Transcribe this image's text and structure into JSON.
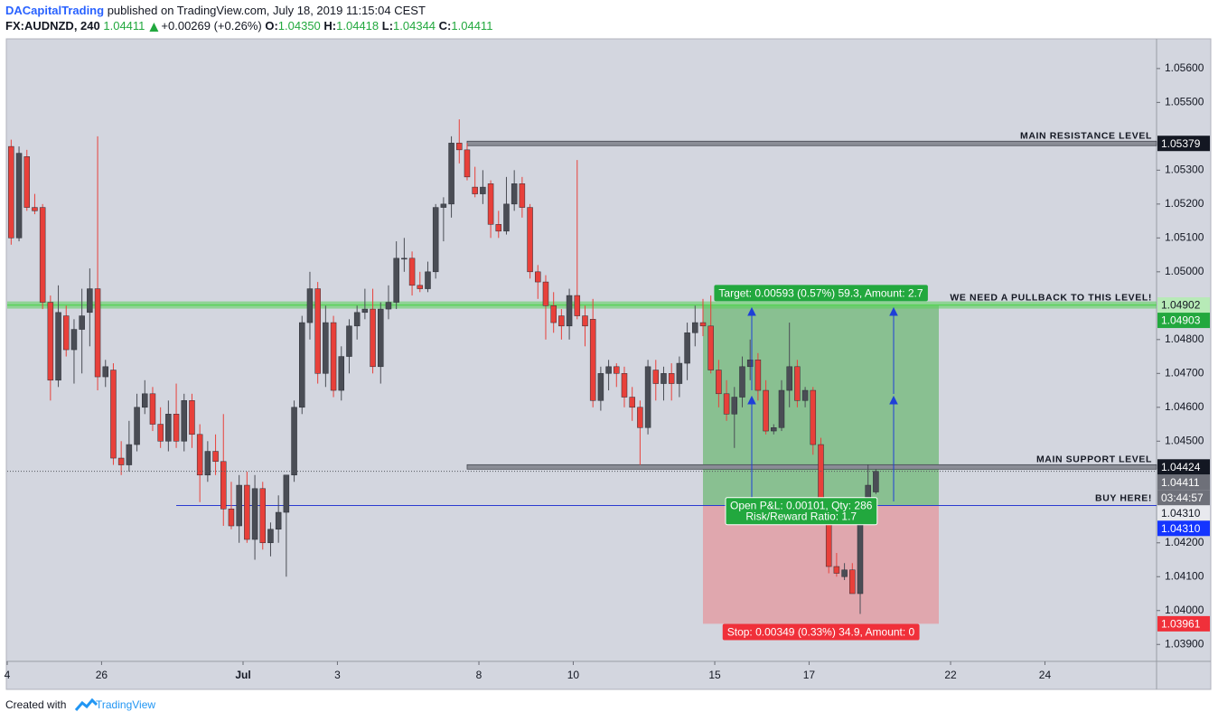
{
  "header": {
    "author": "DACapitalTrading",
    "published": "published on TradingView.com, July 18, 2019 11:15:04 CEST",
    "symbol": "FX:AUDNZD, 240",
    "last": "1.04411",
    "change": "+0.00269 (+0.26%)",
    "ohlc": [
      {
        "label": "O:",
        "value": "1.04350"
      },
      {
        "label": "H:",
        "value": "1.04418"
      },
      {
        "label": "L:",
        "value": "1.04344"
      },
      {
        "label": "C:",
        "value": "1.04411"
      }
    ]
  },
  "footer": {
    "created": "Created with",
    "brand": "TradingView"
  },
  "chart_data": {
    "type": "candlestick",
    "up_color": "#4a4d55",
    "down_color": "#e8403a",
    "grid": false,
    "xlim": [
      -0.5,
      145.7
    ],
    "ylim": [
      1.0385,
      1.05685
    ],
    "xticks": [
      {
        "value": -0.5,
        "label": "4"
      },
      {
        "value": 11.5,
        "label": "26"
      },
      {
        "value": 29.5,
        "label": "Jul"
      },
      {
        "value": 41.5,
        "label": "3"
      },
      {
        "value": 59.5,
        "label": "8"
      },
      {
        "value": 71.5,
        "label": "10"
      },
      {
        "value": 89.5,
        "label": "15"
      },
      {
        "value": 101.5,
        "label": "17"
      },
      {
        "value": 119.5,
        "label": "22"
      },
      {
        "value": 131.5,
        "label": "24"
      }
    ],
    "yticks": [
      {
        "value": 1.056,
        "label": "1.05600"
      },
      {
        "value": 1.055,
        "label": "1.05500"
      },
      {
        "value": 1.053,
        "label": "1.05300"
      },
      {
        "value": 1.052,
        "label": "1.05200"
      },
      {
        "value": 1.051,
        "label": "1.05100"
      },
      {
        "value": 1.05,
        "label": "1.05000"
      },
      {
        "value": 1.048,
        "label": "1.04800"
      },
      {
        "value": 1.047,
        "label": "1.04700"
      },
      {
        "value": 1.046,
        "label": "1.04600"
      },
      {
        "value": 1.045,
        "label": "1.04500"
      },
      {
        "value": 1.042,
        "label": "1.04200"
      },
      {
        "value": 1.041,
        "label": "1.04100"
      },
      {
        "value": 1.04,
        "label": "1.04000"
      },
      {
        "value": 1.039,
        "label": "1.03900"
      }
    ],
    "candles": [
      [
        1.0537,
        1.0539,
        1.0508,
        1.051
      ],
      [
        1.051,
        1.0537,
        1.0509,
        1.0535
      ],
      [
        1.0534,
        1.0536,
        1.0518,
        1.0519
      ],
      [
        1.0519,
        1.0523,
        1.0517,
        1.0518
      ],
      [
        1.0519,
        1.052,
        1.0489,
        1.0491
      ],
      [
        1.0491,
        1.0493,
        1.0462,
        1.0468
      ],
      [
        1.0468,
        1.0496,
        1.0466,
        1.0488
      ],
      [
        1.0487,
        1.049,
        1.0475,
        1.0477
      ],
      [
        1.0477,
        1.0486,
        1.0467,
        1.0483
      ],
      [
        1.0483,
        1.0495,
        1.047,
        1.0487
      ],
      [
        1.0488,
        1.0501,
        1.0478,
        1.0495
      ],
      [
        1.0495,
        1.054,
        1.0465,
        1.0469
      ],
      [
        1.0469,
        1.0474,
        1.0466,
        1.0472
      ],
      [
        1.0471,
        1.0473,
        1.0443,
        1.0445
      ],
      [
        1.0445,
        1.045,
        1.044,
        1.0443
      ],
      [
        1.0443,
        1.0456,
        1.0441,
        1.0449
      ],
      [
        1.0449,
        1.0464,
        1.0447,
        1.046
      ],
      [
        1.046,
        1.0468,
        1.0458,
        1.0464
      ],
      [
        1.0464,
        1.0466,
        1.0453,
        1.0455
      ],
      [
        1.0455,
        1.046,
        1.0448,
        1.045
      ],
      [
        1.045,
        1.0462,
        1.0447,
        1.0458
      ],
      [
        1.0458,
        1.0467,
        1.0448,
        1.045
      ],
      [
        1.045,
        1.0464,
        1.0447,
        1.0462
      ],
      [
        1.0462,
        1.0464,
        1.0448,
        1.0452
      ],
      [
        1.0452,
        1.0455,
        1.0432,
        1.044
      ],
      [
        1.044,
        1.045,
        1.0438,
        1.0447
      ],
      [
        1.0447,
        1.0452,
        1.044,
        1.0444
      ],
      [
        1.0444,
        1.0458,
        1.0425,
        1.043
      ],
      [
        1.043,
        1.0438,
        1.0424,
        1.0425
      ],
      [
        1.0425,
        1.044,
        1.042,
        1.0437
      ],
      [
        1.0437,
        1.0441,
        1.042,
        1.0421
      ],
      [
        1.0421,
        1.044,
        1.0415,
        1.0436
      ],
      [
        1.0436,
        1.0438,
        1.0418,
        1.042
      ],
      [
        1.042,
        1.0426,
        1.0416,
        1.0424
      ],
      [
        1.0424,
        1.0434,
        1.042,
        1.0429
      ],
      [
        1.0429,
        1.044,
        1.041,
        1.044
      ],
      [
        1.044,
        1.0462,
        1.0438,
        1.046
      ],
      [
        1.046,
        1.0487,
        1.0458,
        1.0485
      ],
      [
        1.0485,
        1.05,
        1.048,
        1.0495
      ],
      [
        1.0495,
        1.0497,
        1.0467,
        1.047
      ],
      [
        1.047,
        1.049,
        1.0466,
        1.0485
      ],
      [
        1.0485,
        1.0487,
        1.0463,
        1.0465
      ],
      [
        1.0465,
        1.0478,
        1.0462,
        1.0475
      ],
      [
        1.0475,
        1.0486,
        1.047,
        1.0484
      ],
      [
        1.0484,
        1.049,
        1.048,
        1.0488
      ],
      [
        1.0488,
        1.0495,
        1.0486,
        1.0489
      ],
      [
        1.0489,
        1.0495,
        1.047,
        1.0472
      ],
      [
        1.0472,
        1.0491,
        1.0467,
        1.0489
      ],
      [
        1.0489,
        1.0496,
        1.0486,
        1.0491
      ],
      [
        1.0491,
        1.0509,
        1.0489,
        1.0504
      ],
      [
        1.0504,
        1.051,
        1.05,
        1.0504
      ],
      [
        1.0504,
        1.0506,
        1.0493,
        1.0496
      ],
      [
        1.0496,
        1.05,
        1.0494,
        1.0495
      ],
      [
        1.0495,
        1.0503,
        1.0494,
        1.05
      ],
      [
        1.05,
        1.052,
        1.0498,
        1.0519
      ],
      [
        1.0519,
        1.0522,
        1.0509,
        1.052
      ],
      [
        1.052,
        1.054,
        1.0516,
        1.0538
      ],
      [
        1.0538,
        1.0545,
        1.0532,
        1.0536
      ],
      [
        1.0536,
        1.0538,
        1.0527,
        1.0528
      ],
      [
        1.0525,
        1.0531,
        1.0522,
        1.0523
      ],
      [
        1.0523,
        1.053,
        1.052,
        1.0525
      ],
      [
        1.0526,
        1.0527,
        1.051,
        1.0514
      ],
      [
        1.0514,
        1.0518,
        1.051,
        1.0512
      ],
      [
        1.0512,
        1.0528,
        1.0511,
        1.052
      ],
      [
        1.052,
        1.053,
        1.0518,
        1.0526
      ],
      [
        1.0526,
        1.0528,
        1.0516,
        1.0519
      ],
      [
        1.0519,
        1.052,
        1.0498,
        1.05
      ],
      [
        1.05,
        1.0502,
        1.0492,
        1.0497
      ],
      [
        1.0497,
        1.0499,
        1.048,
        1.049
      ],
      [
        1.049,
        1.0494,
        1.0482,
        1.0485
      ],
      [
        1.0487,
        1.0489,
        1.048,
        1.0484
      ],
      [
        1.0484,
        1.0495,
        1.048,
        1.0493
      ],
      [
        1.0493,
        1.0533,
        1.0486,
        1.0487
      ],
      [
        1.0487,
        1.049,
        1.0478,
        1.0484
      ],
      [
        1.0486,
        1.0492,
        1.046,
        1.0462
      ],
      [
        1.0462,
        1.0472,
        1.0459,
        1.047
      ],
      [
        1.047,
        1.0474,
        1.0465,
        1.0472
      ],
      [
        1.0472,
        1.0473,
        1.0466,
        1.047
      ],
      [
        1.047,
        1.0472,
        1.046,
        1.0463
      ],
      [
        1.0463,
        1.0466,
        1.0456,
        1.046
      ],
      [
        1.046,
        1.0462,
        1.0443,
        1.0454
      ],
      [
        1.0454,
        1.0474,
        1.0452,
        1.0472
      ],
      [
        1.0471,
        1.0474,
        1.0462,
        1.0467
      ],
      [
        1.0467,
        1.0472,
        1.0462,
        1.047
      ],
      [
        1.047,
        1.0473,
        1.0462,
        1.0467
      ],
      [
        1.0467,
        1.0475,
        1.0463,
        1.0473
      ],
      [
        1.0473,
        1.0485,
        1.0468,
        1.0482
      ],
      [
        1.0482,
        1.049,
        1.0478,
        1.0485
      ],
      [
        1.0485,
        1.0492,
        1.0481,
        1.0484
      ],
      [
        1.0484,
        1.0493,
        1.047,
        1.0471
      ],
      [
        1.0471,
        1.0474,
        1.046,
        1.0464
      ],
      [
        1.0464,
        1.0468,
        1.0456,
        1.0458
      ],
      [
        1.0458,
        1.0466,
        1.0448,
        1.0463
      ],
      [
        1.0463,
        1.0475,
        1.046,
        1.0472
      ],
      [
        1.0472,
        1.048,
        1.0468,
        1.0474
      ],
      [
        1.0474,
        1.0476,
        1.0462,
        1.0465
      ],
      [
        1.0465,
        1.0468,
        1.0452,
        1.0453
      ],
      [
        1.0453,
        1.0455,
        1.0452,
        1.0454
      ],
      [
        1.0454,
        1.0468,
        1.0453,
        1.0465
      ],
      [
        1.0465,
        1.0485,
        1.046,
        1.0472
      ],
      [
        1.0472,
        1.0474,
        1.046,
        1.0462
      ],
      [
        1.0462,
        1.0466,
        1.046,
        1.0465
      ],
      [
        1.0465,
        1.0466,
        1.0446,
        1.0449
      ],
      [
        1.0449,
        1.0451,
        1.0429,
        1.0431
      ],
      [
        1.0431,
        1.0433,
        1.0411,
        1.0413
      ],
      [
        1.0413,
        1.0417,
        1.041,
        1.0411
      ],
      [
        1.041,
        1.0414,
        1.0409,
        1.0412
      ],
      [
        1.0412,
        1.0414,
        1.0405,
        1.0405
      ],
      [
        1.0405,
        1.0433,
        1.0399,
        1.0433
      ],
      [
        1.0433,
        1.0443,
        1.043,
        1.0437
      ],
      [
        1.0435,
        1.04418,
        1.04344,
        1.04411
      ]
    ],
    "levels": [
      {
        "label": "MAIN RESISTANCE LEVEL",
        "value": 1.05379,
        "start": 58,
        "style": "band",
        "color": "#8a8d96"
      },
      {
        "label": "WE NEED A PULLBACK TO THIS LEVEL!",
        "value": 1.04902,
        "start": -0.5,
        "style": "glow",
        "color": "#5ad25a"
      },
      {
        "label": "MAIN SUPPORT LEVEL",
        "value": 1.04424,
        "start": 58,
        "style": "band",
        "color": "#8a8d96"
      },
      {
        "label": "BUY HERE!",
        "value": 1.0431,
        "start": 21,
        "style": "line",
        "color": "#2a3bd1"
      }
    ],
    "position": {
      "start": 88,
      "end": 118,
      "entry": 1.0431,
      "target": 1.04903,
      "stop": 1.03961,
      "target_label": "Target: 0.00593 (0.57%) 59.3, Amount: 2.7",
      "stop_label": "Stop: 0.00349 (0.33%) 34.9, Amount: 0",
      "pnl_label": "Open P&L: 0.00101, Qty: 286",
      "rr_label": "Risk/Reward Ratio: 1.7"
    },
    "price_labels": [
      {
        "value": 1.05379,
        "label": "1.05379",
        "color": "#131722",
        "text_color": "#ffffff"
      },
      {
        "value": 1.04902,
        "label": "1.04902",
        "color": "#b7eab7",
        "text_color": "#131722"
      },
      {
        "value": 1.04903,
        "label": "1.04903",
        "color": "#22a83e",
        "text_color": "#ffffff"
      },
      {
        "value": 1.04424,
        "label": "1.04424",
        "color": "#131722",
        "text_color": "#ffffff"
      },
      {
        "value": 1.04411,
        "label": "1.04411",
        "color": "#6e7079",
        "text_color": "#ffffff"
      },
      {
        "value": 1.04411,
        "label": "03:44:57",
        "color": "#6e7079",
        "text_color": "#ffffff"
      },
      {
        "value": 1.0431,
        "label": "1.04310",
        "color": "#e8e9ee",
        "text_color": "#131722"
      },
      {
        "value": 1.0431,
        "label": "1.04310",
        "color": "#1435ff",
        "text_color": "#ffffff"
      },
      {
        "value": 1.03961,
        "label": "1.03961",
        "color": "#f0303a",
        "text_color": "#ffffff"
      }
    ]
  }
}
